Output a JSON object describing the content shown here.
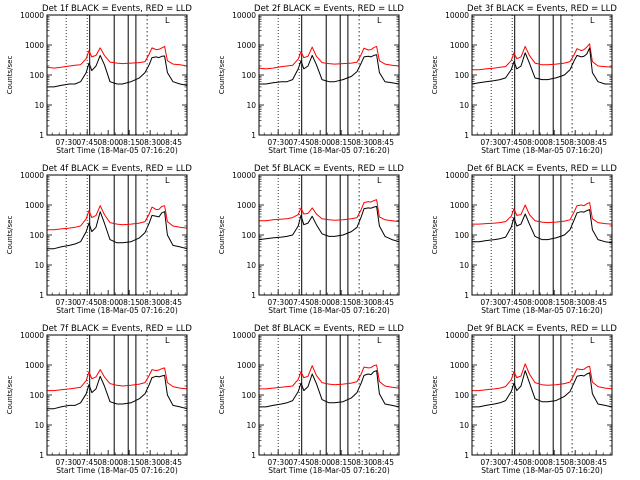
{
  "common": {
    "ylabel": "Counts/sec",
    "xlabel": "Start Time (18-Mar-05 07:16:20)",
    "x_ticks": [
      "07:30",
      "07:45",
      "08:00",
      "08:15",
      "08:30",
      "08:45"
    ],
    "y_ticks": [
      "1",
      "10",
      "100",
      "1000",
      "10000"
    ],
    "corner_marker": "L",
    "colors": {
      "events": "#000000",
      "lld": "#ff0000"
    }
  },
  "chart_data": [
    {
      "type": "line",
      "title": "Det 1f BLACK = Events, RED = LLD",
      "xlabel": "Start Time (18-Mar-05 07:16:20)",
      "ylabel": "Counts/sec",
      "x_unit": "minutes after 07:16:20",
      "xlim": [
        0,
        100
      ],
      "ylim": [
        1,
        10000
      ],
      "y_scale": "log",
      "x": [
        0,
        5,
        10,
        16,
        20,
        24,
        28,
        30,
        32,
        35,
        38,
        41,
        45,
        50,
        54,
        60,
        66,
        70,
        73,
        75,
        78,
        80,
        82,
        84,
        86,
        90,
        95,
        100
      ],
      "series": [
        {
          "name": "Events",
          "values": [
            40,
            40,
            45,
            50,
            50,
            60,
            120,
            250,
            140,
            200,
            450,
            220,
            60,
            50,
            50,
            60,
            80,
            120,
            220,
            380,
            400,
            380,
            420,
            430,
            120,
            60,
            50,
            45
          ]
        },
        {
          "name": "LLD",
          "values": [
            180,
            170,
            180,
            200,
            210,
            220,
            350,
            650,
            400,
            450,
            800,
            450,
            270,
            250,
            240,
            250,
            260,
            280,
            500,
            800,
            700,
            720,
            800,
            900,
            300,
            230,
            220,
            200
          ]
        }
      ],
      "vertical_lines": {
        "dotted": [
          13.7,
          28.7
        ],
        "solid": [
          30.5,
          48.0,
          58.0,
          63.5
        ],
        "dashed": [
          71.5
        ]
      }
    },
    {
      "type": "line",
      "title": "Det 2f BLACK = Events, RED = LLD",
      "xlabel": "Start Time (18-Mar-05 07:16:20)",
      "ylabel": "Counts/sec",
      "x_unit": "minutes after 07:16:20",
      "xlim": [
        0,
        100
      ],
      "ylim": [
        1,
        10000
      ],
      "y_scale": "log",
      "x": [
        0,
        5,
        10,
        16,
        20,
        24,
        28,
        30,
        32,
        35,
        38,
        41,
        45,
        50,
        54,
        60,
        66,
        70,
        73,
        75,
        78,
        80,
        82,
        84,
        86,
        90,
        95,
        100
      ],
      "series": [
        {
          "name": "Events",
          "values": [
            50,
            50,
            55,
            60,
            60,
            70,
            160,
            300,
            160,
            200,
            450,
            220,
            70,
            60,
            60,
            70,
            90,
            130,
            250,
            400,
            420,
            400,
            450,
            470,
            120,
            60,
            55,
            50
          ]
        },
        {
          "name": "LLD",
          "values": [
            170,
            160,
            170,
            190,
            200,
            210,
            340,
            600,
            380,
            420,
            850,
            420,
            260,
            240,
            230,
            240,
            250,
            270,
            480,
            780,
            680,
            700,
            820,
            900,
            300,
            230,
            210,
            200
          ]
        }
      ],
      "vertical_lines": {
        "dotted": [
          13.7,
          28.7
        ],
        "solid": [
          30.5,
          48.0,
          58.0,
          63.5
        ],
        "dashed": [
          71.5
        ]
      }
    },
    {
      "type": "line",
      "title": "Det 3f BLACK = Events, RED = LLD",
      "xlabel": "Start Time (18-Mar-05 07:16:20)",
      "ylabel": "Counts/sec",
      "x_unit": "minutes after 07:16:20",
      "xlim": [
        0,
        100
      ],
      "ylim": [
        1,
        10000
      ],
      "y_scale": "log",
      "x": [
        0,
        5,
        10,
        16,
        20,
        24,
        28,
        30,
        32,
        35,
        38,
        41,
        45,
        50,
        54,
        60,
        66,
        70,
        73,
        75,
        78,
        80,
        82,
        84,
        86,
        90,
        95,
        100
      ],
      "series": [
        {
          "name": "Events",
          "values": [
            50,
            55,
            60,
            65,
            70,
            80,
            150,
            280,
            160,
            200,
            550,
            250,
            80,
            70,
            70,
            80,
            100,
            150,
            300,
            450,
            400,
            420,
            500,
            800,
            120,
            60,
            50,
            50
          ]
        },
        {
          "name": "LLD",
          "values": [
            150,
            150,
            160,
            170,
            180,
            190,
            300,
            550,
            350,
            400,
            900,
            450,
            250,
            220,
            220,
            230,
            250,
            280,
            480,
            750,
            650,
            700,
            850,
            1100,
            280,
            200,
            190,
            180
          ]
        }
      ],
      "vertical_lines": {
        "dotted": [
          13.7,
          28.7
        ],
        "solid": [
          30.5,
          48.0,
          58.0,
          63.5
        ],
        "dashed": [
          71.5
        ]
      }
    },
    {
      "type": "line",
      "title": "Det 4f BLACK = Events, RED = LLD",
      "xlabel": "Start Time (18-Mar-05 07:16:20)",
      "ylabel": "Counts/sec",
      "x_unit": "minutes after 07:16:20",
      "xlim": [
        0,
        100
      ],
      "ylim": [
        1,
        10000
      ],
      "y_scale": "log",
      "x": [
        0,
        5,
        10,
        16,
        20,
        24,
        28,
        30,
        32,
        35,
        38,
        41,
        45,
        50,
        54,
        60,
        66,
        70,
        73,
        75,
        78,
        80,
        82,
        84,
        86,
        90,
        95,
        100
      ],
      "series": [
        {
          "name": "Events",
          "values": [
            35,
            35,
            40,
            45,
            50,
            60,
            130,
            250,
            130,
            180,
            600,
            250,
            70,
            55,
            55,
            60,
            80,
            120,
            250,
            450,
            420,
            400,
            550,
            600,
            100,
            45,
            40,
            35
          ]
        },
        {
          "name": "LLD",
          "values": [
            150,
            150,
            160,
            170,
            180,
            200,
            350,
            650,
            380,
            450,
            950,
            480,
            260,
            230,
            220,
            230,
            250,
            280,
            500,
            850,
            700,
            720,
            900,
            950,
            280,
            200,
            180,
            170
          ]
        }
      ],
      "vertical_lines": {
        "dotted": [
          13.7,
          28.7
        ],
        "solid": [
          30.5,
          48.0,
          58.0,
          63.5
        ],
        "dashed": [
          71.5
        ]
      }
    },
    {
      "type": "line",
      "title": "Det 5f BLACK = Events, RED = LLD",
      "xlabel": "Start Time (18-Mar-05 07:16:20)",
      "ylabel": "Counts/sec",
      "x_unit": "minutes after 07:16:20",
      "xlim": [
        0,
        100
      ],
      "ylim": [
        1,
        10000
      ],
      "y_scale": "log",
      "x": [
        0,
        5,
        10,
        16,
        20,
        24,
        28,
        30,
        32,
        35,
        38,
        41,
        45,
        50,
        54,
        60,
        66,
        70,
        73,
        75,
        78,
        80,
        82,
        84,
        86,
        90,
        95,
        100
      ],
      "series": [
        {
          "name": "Events",
          "values": [
            70,
            75,
            80,
            85,
            90,
            100,
            200,
            450,
            220,
            250,
            420,
            220,
            110,
            90,
            90,
            100,
            130,
            180,
            400,
            750,
            800,
            780,
            850,
            900,
            200,
            90,
            70,
            60
          ]
        },
        {
          "name": "LLD",
          "values": [
            300,
            300,
            320,
            340,
            350,
            380,
            480,
            800,
            500,
            520,
            800,
            500,
            350,
            320,
            310,
            320,
            350,
            380,
            700,
            1200,
            1300,
            1250,
            1400,
            1500,
            400,
            320,
            300,
            280
          ]
        }
      ],
      "vertical_lines": {
        "dotted": [
          13.7,
          28.7
        ],
        "solid": [
          30.5,
          48.0,
          58.0,
          63.5
        ],
        "dashed": [
          71.5
        ]
      }
    },
    {
      "type": "line",
      "title": "Det 6f BLACK = Events, RED = LLD",
      "xlabel": "Start Time (18-Mar-05 07:16:20)",
      "ylabel": "Counts/sec",
      "x_unit": "minutes after 07:16:20",
      "xlim": [
        0,
        100
      ],
      "ylim": [
        1,
        10000
      ],
      "y_scale": "log",
      "x": [
        0,
        5,
        10,
        16,
        20,
        24,
        28,
        30,
        32,
        35,
        38,
        41,
        45,
        50,
        54,
        60,
        66,
        70,
        73,
        75,
        78,
        80,
        82,
        84,
        86,
        90,
        95,
        100
      ],
      "series": [
        {
          "name": "Events",
          "values": [
            60,
            60,
            65,
            70,
            75,
            85,
            180,
            380,
            200,
            230,
            500,
            230,
            90,
            70,
            70,
            80,
            100,
            150,
            320,
            550,
            600,
            580,
            650,
            700,
            150,
            70,
            60,
            55
          ]
        },
        {
          "name": "LLD",
          "values": [
            230,
            230,
            240,
            250,
            260,
            280,
            420,
            750,
            450,
            480,
            1000,
            480,
            300,
            270,
            260,
            270,
            290,
            320,
            600,
            950,
            1000,
            950,
            1100,
            1200,
            350,
            260,
            240,
            230
          ]
        }
      ],
      "vertical_lines": {
        "dotted": [
          13.7,
          28.7
        ],
        "solid": [
          30.5,
          48.0,
          58.0,
          63.5
        ],
        "dashed": [
          71.5
        ]
      }
    },
    {
      "type": "line",
      "title": "Det 7f BLACK = Events, RED = LLD",
      "xlabel": "Start Time (18-Mar-05 07:16:20)",
      "ylabel": "Counts/sec",
      "x_unit": "minutes after 07:16:20",
      "xlim": [
        0,
        100
      ],
      "ylim": [
        1,
        10000
      ],
      "y_scale": "log",
      "x": [
        0,
        5,
        10,
        16,
        20,
        24,
        28,
        30,
        32,
        35,
        38,
        41,
        45,
        50,
        54,
        60,
        66,
        70,
        73,
        75,
        78,
        80,
        82,
        84,
        86,
        90,
        95,
        100
      ],
      "series": [
        {
          "name": "Events",
          "values": [
            35,
            35,
            40,
            45,
            45,
            55,
            110,
            220,
            120,
            160,
            420,
            200,
            60,
            50,
            50,
            55,
            75,
            110,
            220,
            380,
            420,
            400,
            430,
            450,
            100,
            45,
            40,
            35
          ]
        },
        {
          "name": "LLD",
          "values": [
            140,
            140,
            150,
            160,
            170,
            180,
            300,
            600,
            350,
            400,
            700,
            400,
            240,
            210,
            200,
            210,
            230,
            260,
            450,
            700,
            650,
            680,
            750,
            800,
            260,
            190,
            170,
            160
          ]
        }
      ],
      "vertical_lines": {
        "dotted": [
          13.7,
          28.7
        ],
        "solid": [
          30.5,
          48.0,
          58.0,
          63.5
        ],
        "dashed": [
          71.5
        ]
      }
    },
    {
      "type": "line",
      "title": "Det 8f BLACK = Events, RED = LLD",
      "xlabel": "Start Time (18-Mar-05 07:16:20)",
      "ylabel": "Counts/sec",
      "x_unit": "minutes after 07:16:20",
      "xlim": [
        0,
        100
      ],
      "ylim": [
        1,
        10000
      ],
      "y_scale": "log",
      "x": [
        0,
        5,
        10,
        16,
        20,
        24,
        28,
        30,
        32,
        35,
        38,
        41,
        45,
        50,
        54,
        60,
        66,
        70,
        73,
        75,
        78,
        80,
        82,
        84,
        86,
        90,
        95,
        100
      ],
      "series": [
        {
          "name": "Events",
          "values": [
            40,
            40,
            45,
            50,
            55,
            65,
            130,
            250,
            140,
            190,
            500,
            240,
            70,
            55,
            55,
            60,
            80,
            120,
            250,
            450,
            500,
            480,
            600,
            650,
            110,
            50,
            45,
            40
          ]
        },
        {
          "name": "LLD",
          "values": [
            160,
            160,
            170,
            180,
            190,
            200,
            330,
            600,
            380,
            420,
            950,
            450,
            260,
            230,
            220,
            230,
            250,
            280,
            500,
            850,
            800,
            820,
            950,
            1000,
            280,
            200,
            180,
            170
          ]
        }
      ],
      "vertical_lines": {
        "dotted": [
          13.7,
          28.7
        ],
        "solid": [
          30.5,
          48.0,
          58.0,
          63.5
        ],
        "dashed": [
          71.5
        ]
      }
    },
    {
      "type": "line",
      "title": "Det 9f BLACK = Events, RED = LLD",
      "xlabel": "Start Time (18-Mar-05 07:16:20)",
      "ylabel": "Counts/sec",
      "x_unit": "minutes after 07:16:20",
      "xlim": [
        0,
        100
      ],
      "ylim": [
        1,
        10000
      ],
      "y_scale": "log",
      "x": [
        0,
        5,
        10,
        16,
        20,
        24,
        28,
        30,
        32,
        35,
        38,
        41,
        45,
        50,
        54,
        60,
        66,
        70,
        73,
        75,
        78,
        80,
        82,
        84,
        86,
        90,
        95,
        100
      ],
      "series": [
        {
          "name": "Events",
          "values": [
            40,
            40,
            45,
            50,
            55,
            65,
            130,
            250,
            140,
            200,
            650,
            260,
            75,
            60,
            60,
            65,
            90,
            130,
            260,
            420,
            450,
            430,
            500,
            550,
            110,
            50,
            45,
            40
          ]
        },
        {
          "name": "LLD",
          "values": [
            140,
            140,
            150,
            160,
            170,
            190,
            320,
            600,
            380,
            430,
            1100,
            500,
            260,
            220,
            210,
            220,
            240,
            270,
            480,
            750,
            700,
            720,
            850,
            900,
            270,
            190,
            170,
            160
          ]
        }
      ],
      "vertical_lines": {
        "dotted": [
          13.7,
          28.7
        ],
        "solid": [
          30.5,
          48.0,
          58.0,
          63.5
        ],
        "dashed": [
          71.5
        ]
      }
    }
  ]
}
